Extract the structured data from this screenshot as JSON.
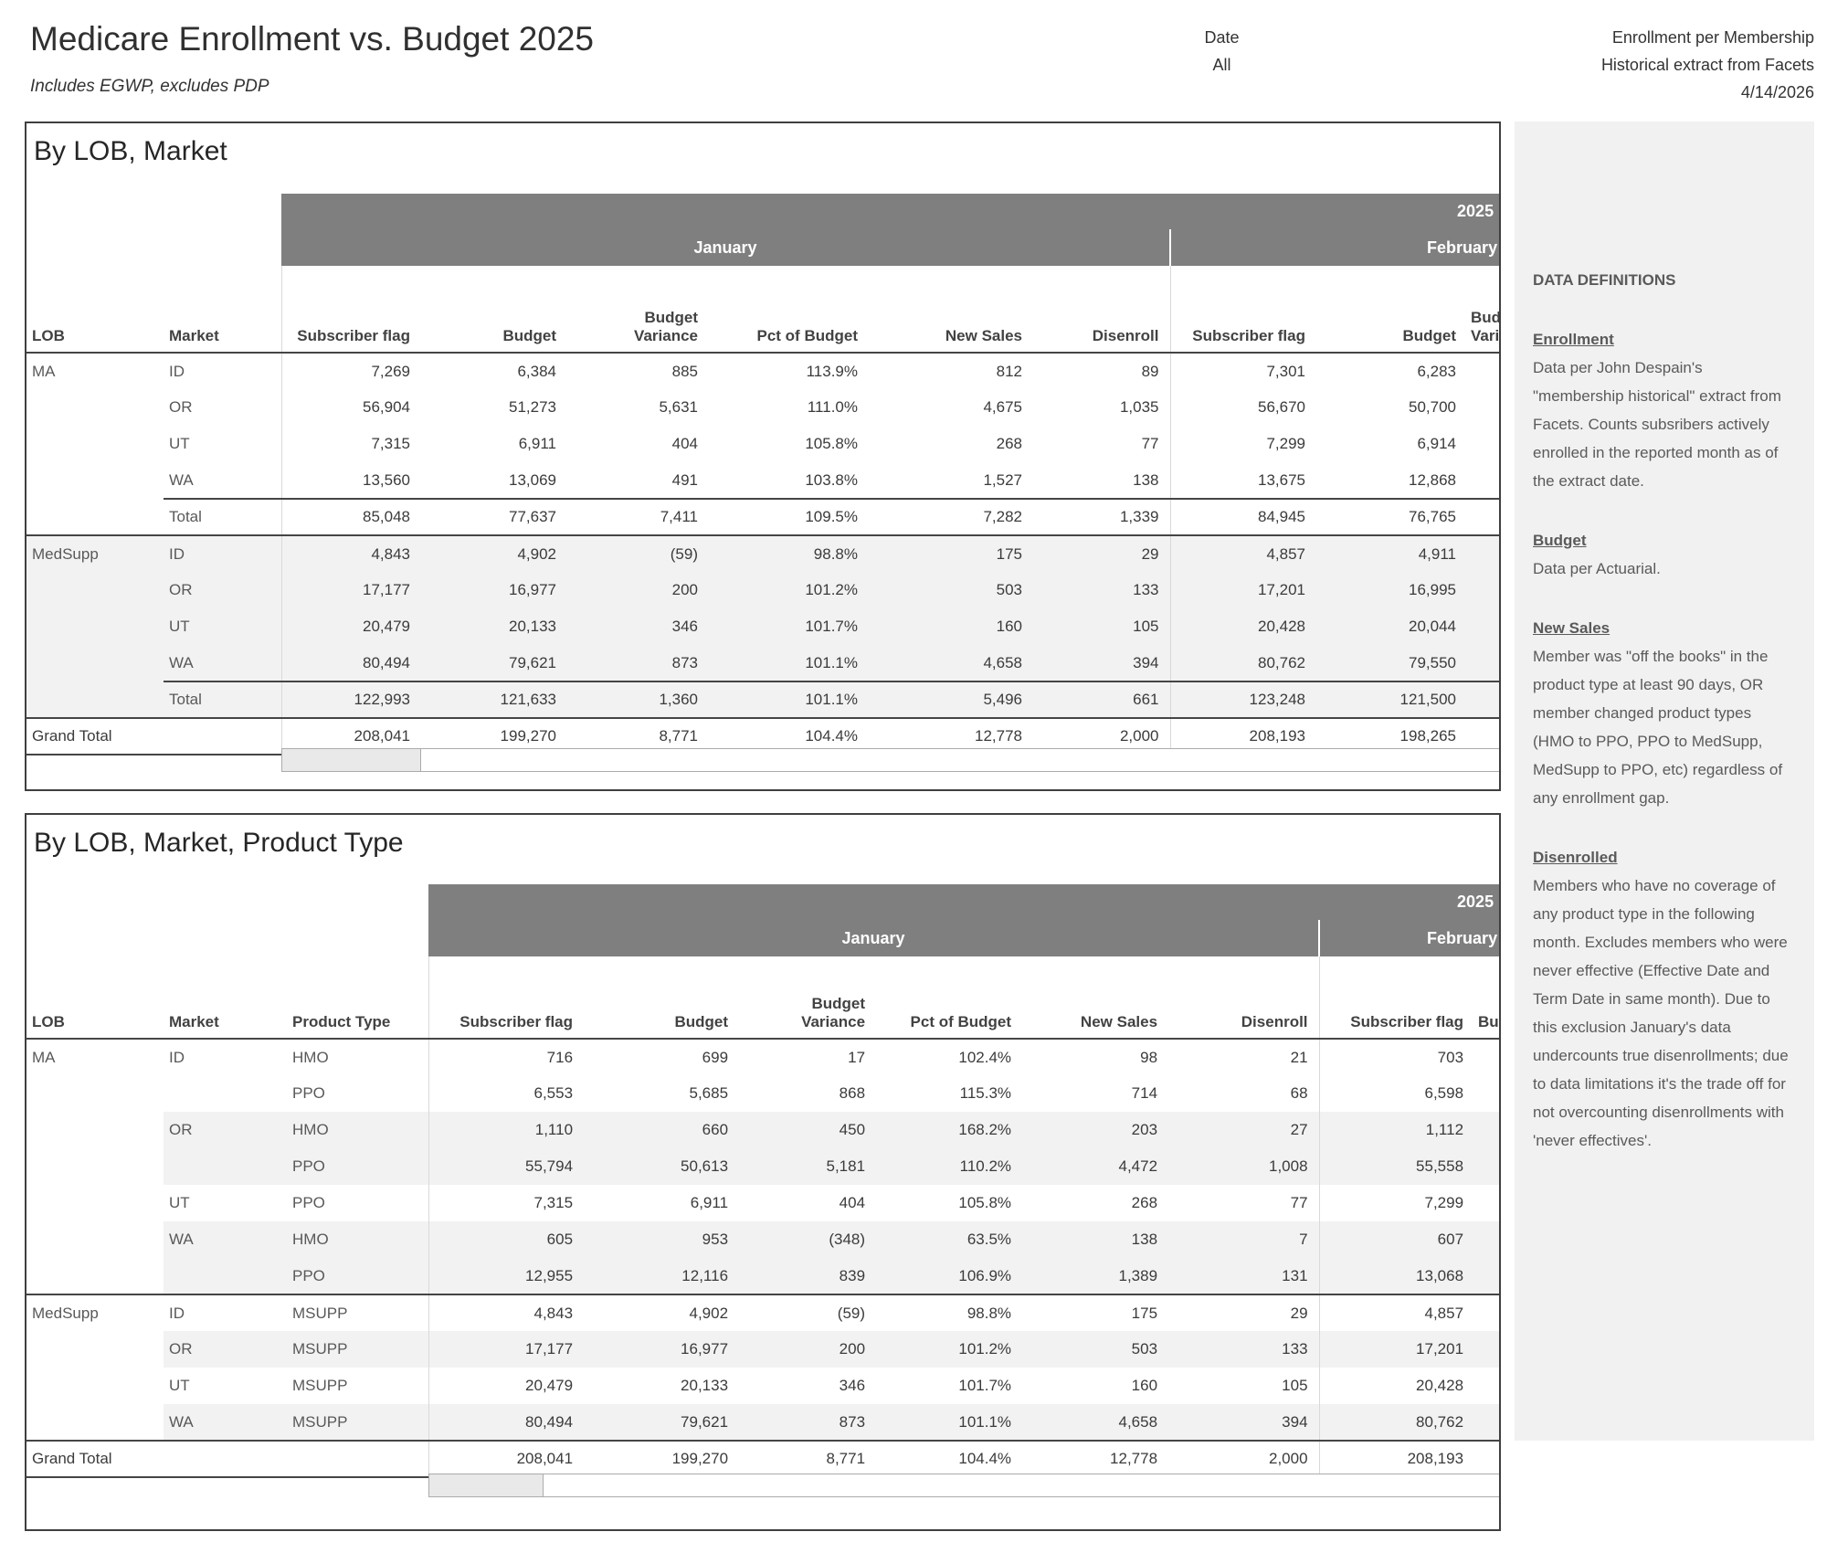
{
  "colors": {
    "header_band": "#7f7f7f",
    "shaded_row": "#f2f2f2",
    "sidebar_background": "#f1f1f1",
    "border": "#454545",
    "light_line": "#d9d9d9"
  },
  "header": {
    "title": "Medicare Enrollment vs. Budget 2025",
    "subtitle": "Includes EGWP, excludes PDP",
    "date_label": "Date",
    "date_value": "All",
    "source_lines": [
      "Enrollment per Membership",
      "Historical extract from Facets",
      "4/14/2026"
    ]
  },
  "tables": [
    {
      "title": "By LOB, Market",
      "year": "2025",
      "months": {
        "jan": "January",
        "feb": "February"
      },
      "columns": {
        "lob": "LOB",
        "market": "Market",
        "subscriber": "Subscriber flag",
        "budget": "Budget",
        "variance": "Budget\nVariance",
        "pct": "Pct of Budget",
        "new_sales": "New Sales",
        "disenroll": "Disenroll"
      },
      "rows": [
        {
          "lob": "MA",
          "market": "ID",
          "values": [
            "7,269",
            "6,384",
            "885",
            "113.9%",
            "812",
            "89",
            "7,301",
            "6,283"
          ]
        },
        {
          "market": "OR",
          "values": [
            "56,904",
            "51,273",
            "5,631",
            "111.0%",
            "4,675",
            "1,035",
            "56,670",
            "50,700"
          ]
        },
        {
          "market": "UT",
          "values": [
            "7,315",
            "6,911",
            "404",
            "105.8%",
            "268",
            "77",
            "7,299",
            "6,914"
          ]
        },
        {
          "market": "WA",
          "values": [
            "13,560",
            "13,069",
            "491",
            "103.8%",
            "1,527",
            "138",
            "13,675",
            "12,868"
          ]
        },
        {
          "market": "Total",
          "subtotal": true,
          "values": [
            "85,048",
            "77,637",
            "7,411",
            "109.5%",
            "7,282",
            "1,339",
            "84,945",
            "76,765"
          ]
        },
        {
          "lob": "MedSupp",
          "market": "ID",
          "section": true,
          "shade": true,
          "values": [
            "4,843",
            "4,902",
            "(59)",
            "98.8%",
            "175",
            "29",
            "4,857",
            "4,911"
          ]
        },
        {
          "market": "OR",
          "shade": true,
          "values": [
            "17,177",
            "16,977",
            "200",
            "101.2%",
            "503",
            "133",
            "17,201",
            "16,995"
          ]
        },
        {
          "market": "UT",
          "shade": true,
          "values": [
            "20,479",
            "20,133",
            "346",
            "101.7%",
            "160",
            "105",
            "20,428",
            "20,044"
          ]
        },
        {
          "market": "WA",
          "shade": true,
          "values": [
            "80,494",
            "79,621",
            "873",
            "101.1%",
            "4,658",
            "394",
            "80,762",
            "79,550"
          ]
        },
        {
          "market": "Total",
          "shade": true,
          "subtotal": true,
          "values": [
            "122,993",
            "121,633",
            "1,360",
            "101.1%",
            "5,496",
            "661",
            "123,248",
            "121,500"
          ]
        },
        {
          "lob": "Grand Total",
          "grand": true,
          "values": [
            "208,041",
            "199,270",
            "8,771",
            "104.4%",
            "12,778",
            "2,000",
            "208,193",
            "198,265"
          ]
        }
      ]
    },
    {
      "title": "By LOB, Market, Product Type",
      "year": "2025",
      "months": {
        "jan": "January",
        "feb": "February"
      },
      "columns": {
        "lob": "LOB",
        "market": "Market",
        "product": "Product Type",
        "subscriber": "Subscriber flag",
        "budget": "Budget",
        "variance": "Budget\nVariance",
        "pct": "Pct of Budget",
        "new_sales": "New Sales",
        "disenroll": "Disenroll"
      },
      "rows": [
        {
          "lob": "MA",
          "market": "ID",
          "product": "HMO",
          "values": [
            "716",
            "699",
            "17",
            "102.4%",
            "98",
            "21",
            "703"
          ]
        },
        {
          "product": "PPO",
          "values": [
            "6,553",
            "5,685",
            "868",
            "115.3%",
            "714",
            "68",
            "6,598"
          ]
        },
        {
          "market": "OR",
          "product": "HMO",
          "shade": true,
          "values": [
            "1,110",
            "660",
            "450",
            "168.2%",
            "203",
            "27",
            "1,112"
          ]
        },
        {
          "product": "PPO",
          "shade": true,
          "values": [
            "55,794",
            "50,613",
            "5,181",
            "110.2%",
            "4,472",
            "1,008",
            "55,558"
          ]
        },
        {
          "market": "UT",
          "product": "PPO",
          "values": [
            "7,315",
            "6,911",
            "404",
            "105.8%",
            "268",
            "77",
            "7,299"
          ]
        },
        {
          "market": "WA",
          "product": "HMO",
          "shade": true,
          "values": [
            "605",
            "953",
            "(348)",
            "63.5%",
            "138",
            "7",
            "607"
          ]
        },
        {
          "product": "PPO",
          "shade": true,
          "values": [
            "12,955",
            "12,116",
            "839",
            "106.9%",
            "1,389",
            "131",
            "13,068"
          ]
        },
        {
          "lob": "MedSupp",
          "market": "ID",
          "product": "MSUPP",
          "section": true,
          "values": [
            "4,843",
            "4,902",
            "(59)",
            "98.8%",
            "175",
            "29",
            "4,857"
          ]
        },
        {
          "market": "OR",
          "product": "MSUPP",
          "shade": true,
          "values": [
            "17,177",
            "16,977",
            "200",
            "101.2%",
            "503",
            "133",
            "17,201"
          ]
        },
        {
          "market": "UT",
          "product": "MSUPP",
          "values": [
            "20,479",
            "20,133",
            "346",
            "101.7%",
            "160",
            "105",
            "20,428"
          ]
        },
        {
          "market": "WA",
          "product": "MSUPP",
          "shade": true,
          "values": [
            "80,494",
            "79,621",
            "873",
            "101.1%",
            "4,658",
            "394",
            "80,762"
          ]
        },
        {
          "lob": "Grand Total",
          "grand": true,
          "values": [
            "208,041",
            "199,270",
            "8,771",
            "104.4%",
            "12,778",
            "2,000",
            "208,193"
          ]
        }
      ]
    }
  ],
  "definitions": {
    "title": "DATA DEFINITIONS",
    "sections": [
      {
        "heading": "Enrollment",
        "body": "Data per John Despain's \"membership historical\" extract from Facets. Counts subsribers actively enrolled in the reported month as of the extract date."
      },
      {
        "heading": "Budget",
        "body": "Data per Actuarial."
      },
      {
        "heading": "New Sales",
        "body": "Member was \"off the books\" in the product type at least 90 days, OR member changed product types (HMO to PPO, PPO to MedSupp, MedSupp to PPO, etc) regardless of any enrollment gap."
      },
      {
        "heading": "Disenrolled",
        "body": "Members who have no coverage of any product type in the following month. Excludes members who were never effective (Effective Date and Term Date in same month). Due to this exclusion January's data undercounts true disenrollments; due to data limitations it's the trade off for not overcounting disenrollments with 'never effectives'."
      }
    ]
  }
}
